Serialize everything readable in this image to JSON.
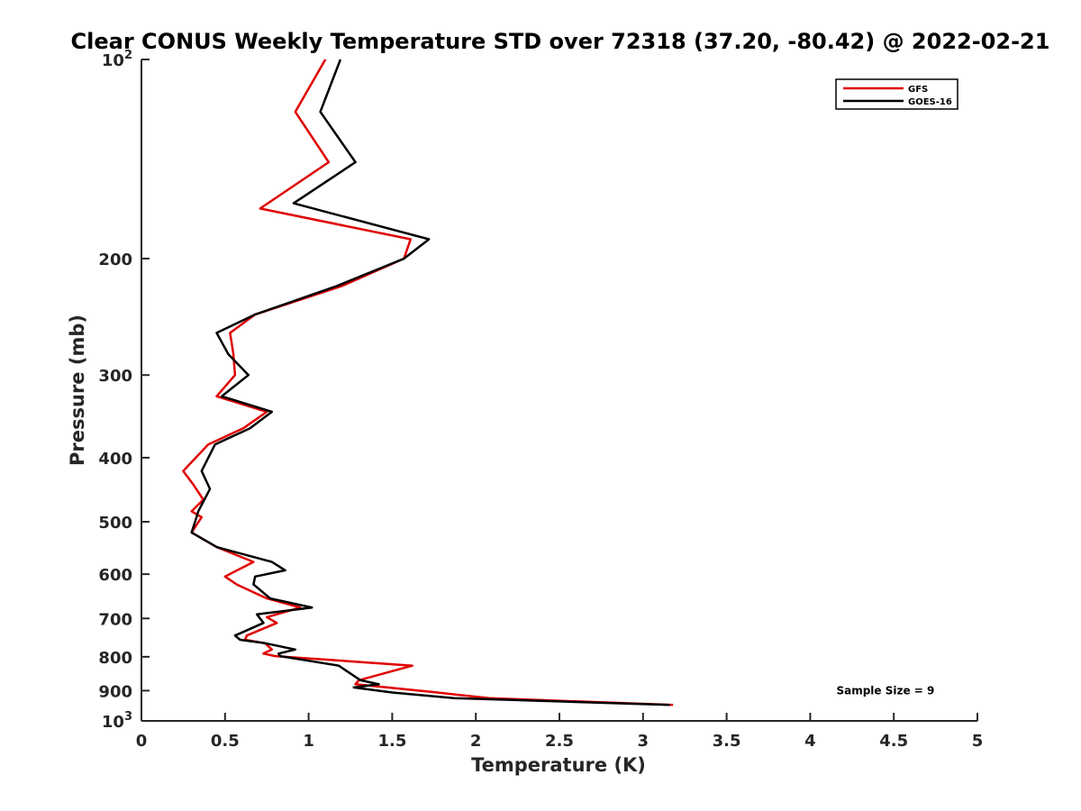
{
  "chart_data": {
    "type": "line",
    "title": "Clear CONUS Weekly Temperature STD over 72318 (37.20, -80.42) @ 2022-02-21",
    "xlabel": "Temperature (K)",
    "ylabel": "Pressure (mb)",
    "xlim": [
      0,
      5
    ],
    "ylim": [
      100,
      1000
    ],
    "y_scale": "log",
    "y_reversed": true,
    "grid": false,
    "legend_position": "top-right",
    "x_ticks": [
      {
        "value": 0,
        "label": "0"
      },
      {
        "value": 0.5,
        "label": "0.5"
      },
      {
        "value": 1,
        "label": "1"
      },
      {
        "value": 1.5,
        "label": "1.5"
      },
      {
        "value": 2,
        "label": "2"
      },
      {
        "value": 2.5,
        "label": "2.5"
      },
      {
        "value": 3,
        "label": "3"
      },
      {
        "value": 3.5,
        "label": "3.5"
      },
      {
        "value": 4,
        "label": "4"
      },
      {
        "value": 4.5,
        "label": "4.5"
      },
      {
        "value": 5,
        "label": "5"
      }
    ],
    "y_ticks": [
      {
        "value": 100,
        "base": "10",
        "exp": "2"
      },
      {
        "value": 200,
        "label": "200"
      },
      {
        "value": 300,
        "label": "300"
      },
      {
        "value": 400,
        "label": "400"
      },
      {
        "value": 500,
        "label": "500"
      },
      {
        "value": 600,
        "label": "600"
      },
      {
        "value": 700,
        "label": "700"
      },
      {
        "value": 800,
        "label": "800"
      },
      {
        "value": 900,
        "label": "900"
      },
      {
        "value": 1000,
        "base": "10",
        "exp": "3"
      }
    ],
    "series": [
      {
        "name": "GFS",
        "color": "#e00000",
        "points": [
          [
            1.1,
            100
          ],
          [
            0.92,
            120
          ],
          [
            1.12,
            143
          ],
          [
            0.71,
            168
          ],
          [
            1.61,
            187
          ],
          [
            1.57,
            200
          ],
          [
            1.2,
            220
          ],
          [
            0.68,
            243
          ],
          [
            0.53,
            259
          ],
          [
            0.55,
            279
          ],
          [
            0.56,
            300
          ],
          [
            0.45,
            323
          ],
          [
            0.75,
            341
          ],
          [
            0.61,
            361
          ],
          [
            0.4,
            382
          ],
          [
            0.25,
            419
          ],
          [
            0.31,
            439
          ],
          [
            0.37,
            463
          ],
          [
            0.3,
            482
          ],
          [
            0.36,
            492
          ],
          [
            0.3,
            519
          ],
          [
            0.45,
            546
          ],
          [
            0.67,
            575
          ],
          [
            0.5,
            605
          ],
          [
            0.57,
            622
          ],
          [
            0.75,
            653
          ],
          [
            0.95,
            674
          ],
          [
            0.75,
            697
          ],
          [
            0.81,
            711
          ],
          [
            0.63,
            743
          ],
          [
            0.62,
            754
          ],
          [
            0.74,
            763
          ],
          [
            0.78,
            780
          ],
          [
            0.73,
            791
          ],
          [
            0.8,
            798
          ],
          [
            1.62,
            825
          ],
          [
            1.3,
            868
          ],
          [
            1.28,
            880
          ],
          [
            1.77,
            906
          ],
          [
            2.08,
            924
          ],
          [
            3.18,
            946
          ]
        ]
      },
      {
        "name": "GOES-16",
        "color": "#000000",
        "points": [
          [
            1.19,
            100
          ],
          [
            1.07,
            120
          ],
          [
            1.28,
            143
          ],
          [
            0.91,
            165
          ],
          [
            1.72,
            187
          ],
          [
            1.57,
            200
          ],
          [
            1.17,
            220
          ],
          [
            0.68,
            243
          ],
          [
            0.45,
            259
          ],
          [
            0.52,
            279
          ],
          [
            0.64,
            300
          ],
          [
            0.48,
            323
          ],
          [
            0.78,
            341
          ],
          [
            0.65,
            361
          ],
          [
            0.44,
            382
          ],
          [
            0.36,
            419
          ],
          [
            0.41,
            446
          ],
          [
            0.34,
            482
          ],
          [
            0.33,
            492
          ],
          [
            0.3,
            519
          ],
          [
            0.45,
            546
          ],
          [
            0.78,
            575
          ],
          [
            0.86,
            592
          ],
          [
            0.68,
            605
          ],
          [
            0.67,
            622
          ],
          [
            0.77,
            653
          ],
          [
            1.02,
            674
          ],
          [
            0.69,
            690
          ],
          [
            0.73,
            711
          ],
          [
            0.56,
            743
          ],
          [
            0.59,
            754
          ],
          [
            0.74,
            763
          ],
          [
            0.92,
            780
          ],
          [
            0.82,
            791
          ],
          [
            0.83,
            798
          ],
          [
            1.18,
            825
          ],
          [
            1.31,
            868
          ],
          [
            1.42,
            880
          ],
          [
            1.27,
            890
          ],
          [
            1.5,
            906
          ],
          [
            1.87,
            924
          ],
          [
            3.16,
            946
          ]
        ]
      }
    ],
    "annotations": [
      {
        "text": "Sample Size = 9",
        "x": 4.45,
        "y": 900
      }
    ]
  }
}
